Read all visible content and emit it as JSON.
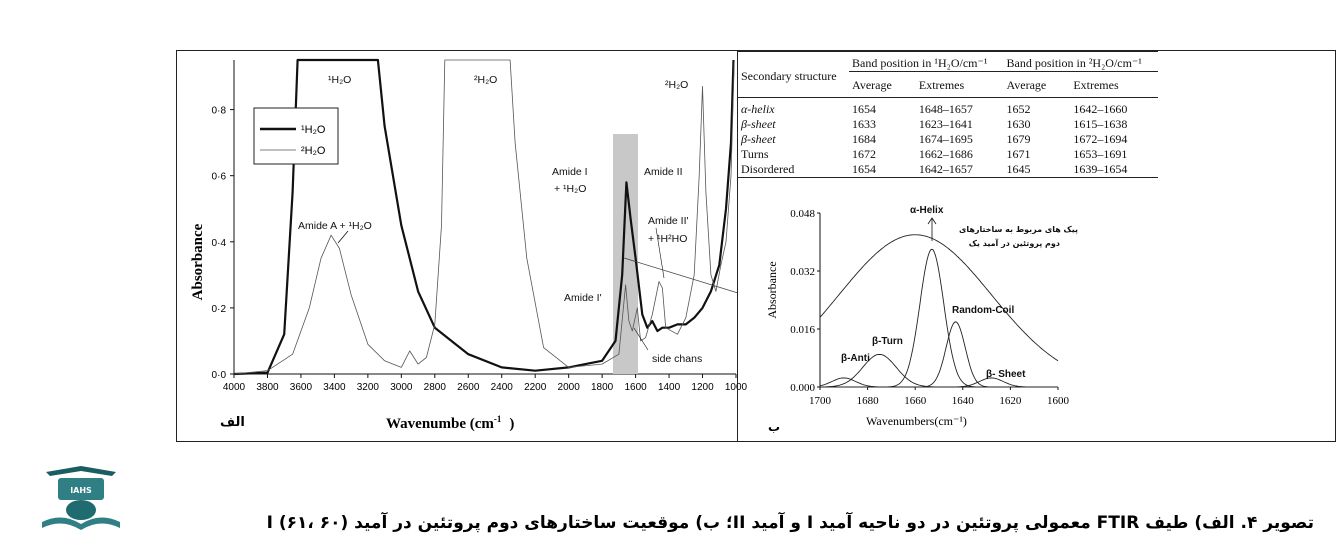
{
  "caption": "تصویر ۴. الف) طیف FTIR معمولی پروتئین در دو ناحیه آمید I و آمید II؛ ب) موقعیت ساختارهای دوم پروتئین در آمید I (۶۱، ۶۰)",
  "logo_text": "IAHS",
  "panel_a": {
    "label": "الف",
    "ylabel": "Absorbance",
    "xlabel": "Wavenumbe (cm",
    "xlabel_sup": "-1",
    "xlabel_close": ")",
    "legend": [
      "¹H₂O",
      "²H₂O"
    ],
    "annotations": {
      "h2o_top": "¹H₂O",
      "d2o_top_mid": "²H₂O",
      "d2o_top_right": "²H₂O",
      "amide_a": "Amide A + ¹H₂O",
      "amide_i_1": "Amide I",
      "amide_i_2": "+ ¹H₂O",
      "amide_ii": "Amide II",
      "amide_ii_p1": "Amide II'",
      "amide_ii_p2": "+ ¹H²HO",
      "amide_i_p": "Amide I'",
      "side_chains": "side chans"
    }
  },
  "panel_b": {
    "label": "ب",
    "ylabel": "Absorbance",
    "xlabel": "Wavenumbers(cm⁻¹)",
    "note_line1": "پیک های مربوط به ساختارهای",
    "note_line2": "دوم پروتئین در آمید یک",
    "peaks": {
      "alpha": "α-Helix",
      "turn": "β-Turn",
      "anti": "β-Anti",
      "coil": "Random-Coil",
      "sheet": "β- Sheet"
    }
  },
  "table": {
    "col_header_1": "Band position in ¹H₂O/cm⁻¹",
    "col_header_2": "Band position in ²H₂O/cm⁻¹",
    "row_header": "Secondary structure",
    "sub_headers": [
      "Average",
      "Extremes",
      "Average",
      "Extremes"
    ],
    "rows": [
      [
        "α-helix",
        "1654",
        "1648–1657",
        "1652",
        "1642–1660"
      ],
      [
        "β-sheet",
        "1633",
        "1623–1641",
        "1630",
        "1615–1638"
      ],
      [
        "β-sheet",
        "1684",
        "1674–1695",
        "1679",
        "1672–1694"
      ],
      [
        "Turns",
        "1672",
        "1662–1686",
        "1671",
        "1653–1691"
      ],
      [
        "Disordered",
        "1654",
        "1642–1657",
        "1645",
        "1639–1654"
      ]
    ]
  },
  "chart_data": [
    {
      "type": "line",
      "ylabel": "Absorbance",
      "xlabel": "Wavenumbe (cm-1)",
      "xlim": [
        4000,
        1000
      ],
      "ylim": [
        0,
        0.95
      ],
      "x_ticks": [
        4000,
        3800,
        3600,
        3400,
        3200,
        3000,
        2800,
        2600,
        2400,
        2200,
        2000,
        1800,
        1600,
        1400,
        1200,
        1000
      ],
      "y_ticks": [
        0,
        0.2,
        0.4,
        0.6,
        0.8
      ],
      "y_tick_labels": [
        "0·0",
        "0·2",
        "0·4",
        "0·6",
        "0·8"
      ],
      "legend_placement": "top-left",
      "series": [
        {
          "name": "¹H₂O",
          "style": "thick",
          "points": [
            [
              4000,
              0.0
            ],
            [
              3800,
              0.004
            ],
            [
              3700,
              0.12
            ],
            [
              3650,
              0.55
            ],
            [
              3620,
              0.95
            ],
            [
              3140,
              0.95
            ],
            [
              3100,
              0.75
            ],
            [
              3000,
              0.45
            ],
            [
              2900,
              0.25
            ],
            [
              2800,
              0.14
            ],
            [
              2600,
              0.06
            ],
            [
              2400,
              0.02
            ],
            [
              2200,
              0.01
            ],
            [
              2000,
              0.02
            ],
            [
              1900,
              0.03
            ],
            [
              1800,
              0.04
            ],
            [
              1720,
              0.1
            ],
            [
              1680,
              0.3
            ],
            [
              1655,
              0.58
            ],
            [
              1630,
              0.47
            ],
            [
              1600,
              0.35
            ],
            [
              1560,
              0.18
            ],
            [
              1530,
              0.14
            ],
            [
              1500,
              0.16
            ],
            [
              1470,
              0.13
            ],
            [
              1440,
              0.14
            ],
            [
              1400,
              0.14
            ],
            [
              1350,
              0.15
            ],
            [
              1300,
              0.15
            ],
            [
              1250,
              0.17
            ],
            [
              1200,
              0.2
            ],
            [
              1150,
              0.25
            ],
            [
              1100,
              0.33
            ],
            [
              1060,
              0.5
            ],
            [
              1030,
              0.7
            ],
            [
              1015,
              0.95
            ]
          ]
        },
        {
          "name": "²H₂O",
          "style": "thin",
          "points": [
            [
              4000,
              0.0
            ],
            [
              3800,
              0.01
            ],
            [
              3650,
              0.06
            ],
            [
              3550,
              0.2
            ],
            [
              3480,
              0.35
            ],
            [
              3420,
              0.42
            ],
            [
              3370,
              0.38
            ],
            [
              3300,
              0.24
            ],
            [
              3200,
              0.09
            ],
            [
              3100,
              0.04
            ],
            [
              3000,
              0.02
            ],
            [
              2950,
              0.07
            ],
            [
              2900,
              0.03
            ],
            [
              2850,
              0.05
            ],
            [
              2800,
              0.15
            ],
            [
              2760,
              0.45
            ],
            [
              2740,
              0.95
            ],
            [
              2350,
              0.95
            ],
            [
              2320,
              0.7
            ],
            [
              2250,
              0.35
            ],
            [
              2150,
              0.08
            ],
            [
              2000,
              0.02
            ],
            [
              1800,
              0.03
            ],
            [
              1700,
              0.06
            ],
            [
              1660,
              0.27
            ],
            [
              1640,
              0.16
            ],
            [
              1620,
              0.13
            ],
            [
              1590,
              0.2
            ],
            [
              1570,
              0.1
            ],
            [
              1540,
              0.11
            ],
            [
              1500,
              0.18
            ],
            [
              1460,
              0.28
            ],
            [
              1440,
              0.26
            ],
            [
              1420,
              0.14
            ],
            [
              1350,
              0.12
            ],
            [
              1300,
              0.17
            ],
            [
              1250,
              0.3
            ],
            [
              1220,
              0.6
            ],
            [
              1200,
              0.87
            ],
            [
              1180,
              0.55
            ],
            [
              1150,
              0.3
            ],
            [
              1120,
              0.25
            ],
            [
              1090,
              0.33
            ],
            [
              1060,
              0.4
            ],
            [
              1030,
              0.6
            ],
            [
              1010,
              0.95
            ]
          ]
        }
      ]
    },
    {
      "type": "line",
      "ylabel": "Absorbance",
      "xlabel": "Wavenumbers(cm⁻¹)",
      "xlim": [
        1700,
        1600
      ],
      "ylim": [
        0,
        0.048
      ],
      "x_ticks": [
        1700,
        1680,
        1660,
        1640,
        1620,
        1600
      ],
      "y_ticks": [
        0,
        0.016,
        0.032,
        0.048
      ],
      "y_tick_labels": [
        "0.000",
        "0.016",
        "0.032",
        "0.048"
      ],
      "envelope": {
        "center": 1660,
        "height": 0.042,
        "width": 32
      },
      "components": [
        {
          "name": "β-Anti",
          "center": 1690,
          "height": 0.0025,
          "width": 5
        },
        {
          "name": "β-Turn",
          "center": 1675,
          "height": 0.009,
          "width": 7
        },
        {
          "name": "α-Helix",
          "center": 1653,
          "height": 0.038,
          "width": 5
        },
        {
          "name": "Random-Coil",
          "center": 1643,
          "height": 0.018,
          "width": 4
        },
        {
          "name": "β- Sheet",
          "center": 1628,
          "height": 0.0025,
          "width": 5
        }
      ]
    }
  ]
}
